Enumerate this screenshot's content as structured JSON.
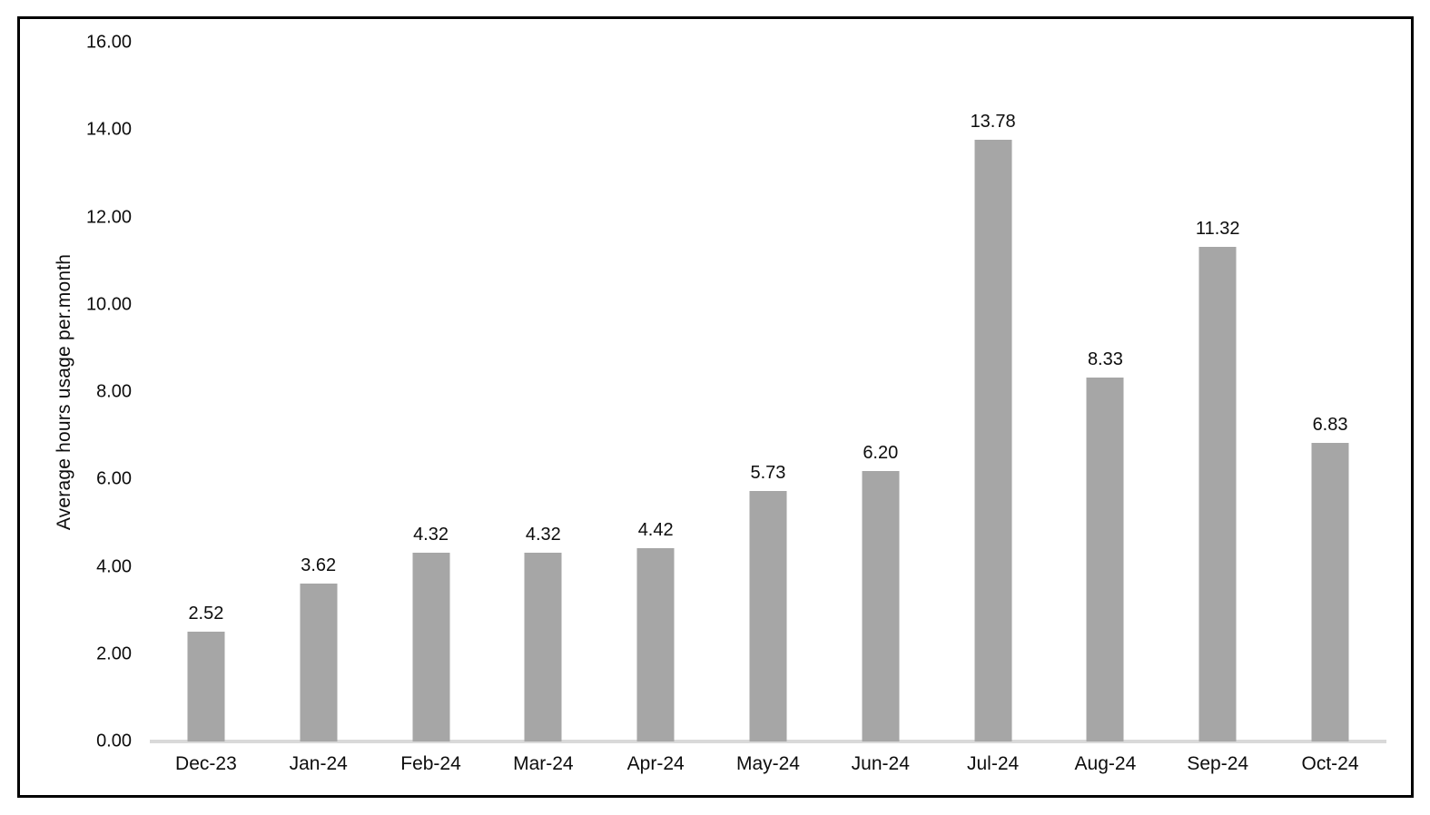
{
  "chart_data": {
    "type": "bar",
    "title": "",
    "xlabel": "",
    "ylabel": "Average hours usage per.month",
    "categories": [
      "Dec-23",
      "Jan-24",
      "Feb-24",
      "Mar-24",
      "Apr-24",
      "May-24",
      "Jun-24",
      "Jul-24",
      "Aug-24",
      "Sep-24",
      "Oct-24"
    ],
    "values": [
      2.52,
      3.62,
      4.32,
      4.32,
      4.42,
      5.73,
      6.2,
      13.78,
      8.33,
      11.32,
      6.83
    ],
    "value_labels": [
      "2.52",
      "3.62",
      "4.32",
      "4.32",
      "4.42",
      "5.73",
      "6.20",
      "13.78",
      "8.33",
      "11.32",
      "6.83"
    ],
    "ylim": [
      0,
      16
    ],
    "ytick_labels": [
      "0.00",
      "2.00",
      "4.00",
      "6.00",
      "8.00",
      "10.00",
      "12.00",
      "14.00",
      "16.00"
    ],
    "grid": "off",
    "legend": "none",
    "colors": {
      "bar": "#a6a6a6",
      "axis_line": "#d9d9d9",
      "text": "#0d0d0d",
      "frame_border": "#000000",
      "background": "#ffffff"
    }
  }
}
